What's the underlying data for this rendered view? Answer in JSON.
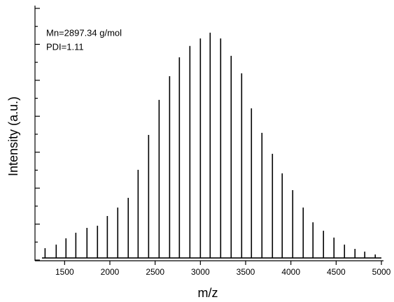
{
  "chart_data": {
    "type": "stem",
    "annotations": [
      "Mn=2897.34 g/mol",
      "PDI=1.11"
    ],
    "x_label": "m/z",
    "y_label": "Intensity (a.u.)",
    "x": [
      1284,
      1407,
      1515,
      1624,
      1747,
      1863,
      1972,
      2087,
      2203,
      2312,
      2428,
      2544,
      2660,
      2768,
      2884,
      3000,
      3108,
      3224,
      3340,
      3456,
      3564,
      3680,
      3796,
      3904,
      4020,
      4136,
      4244,
      4360,
      4476,
      4592,
      4708,
      4816,
      4932
    ],
    "values": [
      0.66,
      0.86,
      1.21,
      1.52,
      1.79,
      1.91,
      2.45,
      2.92,
      3.46,
      5.02,
      6.96,
      8.91,
      10.23,
      11.28,
      11.91,
      12.33,
      12.65,
      12.33,
      11.36,
      10.39,
      8.44,
      7.08,
      5.91,
      4.82,
      3.89,
      2.92,
      2.1,
      1.63,
      1.25,
      0.86,
      0.62,
      0.47,
      0.31
    ],
    "color": "#000000",
    "xlim": [
      1250,
      5000
    ],
    "xticks": [
      1500,
      2000,
      2500,
      3000,
      3500,
      4000,
      4500,
      5000
    ],
    "ylim": [
      0,
      14
    ],
    "yticks": [
      0,
      1,
      2,
      3,
      4,
      5,
      6,
      7,
      8,
      9,
      10,
      11,
      12,
      13,
      14
    ]
  }
}
